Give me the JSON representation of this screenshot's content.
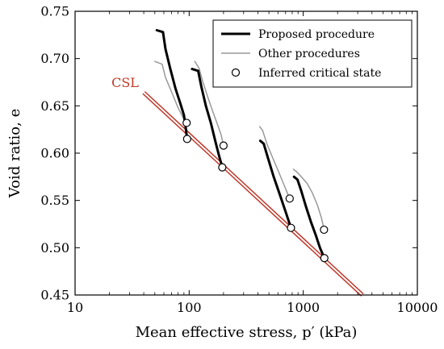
{
  "chart_data": {
    "type": "line",
    "xlabel": "Mean effective stress, p′ (kPa)",
    "ylabel": "Void ratio, e",
    "xscale": "log",
    "xlim": [
      10,
      10000
    ],
    "ylim": [
      0.45,
      0.75
    ],
    "xticks": [
      {
        "value": 10,
        "label": "10"
      },
      {
        "value": 100,
        "label": "100"
      },
      {
        "value": 1000,
        "label": "1000"
      },
      {
        "value": 10000,
        "label": "10000"
      }
    ],
    "yticks": [
      {
        "value": 0.45,
        "label": "0.45"
      },
      {
        "value": 0.5,
        "label": "0.50"
      },
      {
        "value": 0.55,
        "label": "0.55"
      },
      {
        "value": 0.6,
        "label": "0.60"
      },
      {
        "value": 0.65,
        "label": "0.65"
      },
      {
        "value": 0.7,
        "label": "0.70"
      },
      {
        "value": 0.75,
        "label": "0.75"
      }
    ],
    "legend": {
      "placement": "top-right",
      "entries": [
        {
          "key": "proposed",
          "label": "Proposed procedure",
          "style": "thick-line",
          "color": "#000000"
        },
        {
          "key": "other",
          "label": "Other procedures",
          "style": "thin-line",
          "color": "#999999"
        },
        {
          "key": "critical",
          "label": "Inferred critical state",
          "style": "circle",
          "color": "#000000"
        }
      ]
    },
    "csl": {
      "label": "CSL",
      "color": "#c0392b",
      "points": [
        [
          40,
          0.664
        ],
        [
          3300,
          0.45
        ]
      ]
    },
    "series": [
      {
        "key": "other",
        "color": "#999999",
        "width": 1.5,
        "curves": [
          [
            [
              50,
              0.697
            ],
            [
              58,
              0.694
            ],
            [
              62,
              0.68
            ],
            [
              70,
              0.665
            ],
            [
              80,
              0.648
            ],
            [
              88,
              0.638
            ],
            [
              93,
              0.632
            ]
          ],
          [
            [
              112,
              0.697
            ],
            [
              122,
              0.69
            ],
            [
              132,
              0.675
            ],
            [
              145,
              0.66
            ],
            [
              160,
              0.645
            ],
            [
              175,
              0.632
            ],
            [
              190,
              0.62
            ],
            [
              200,
              0.608
            ]
          ],
          [
            [
              415,
              0.628
            ],
            [
              440,
              0.624
            ],
            [
              480,
              0.61
            ],
            [
              540,
              0.595
            ],
            [
              610,
              0.58
            ],
            [
              680,
              0.566
            ],
            [
              760,
              0.552
            ]
          ],
          [
            [
              820,
              0.583
            ],
            [
              880,
              0.58
            ],
            [
              960,
              0.575
            ],
            [
              1080,
              0.568
            ],
            [
              1200,
              0.558
            ],
            [
              1330,
              0.545
            ],
            [
              1440,
              0.532
            ],
            [
              1520,
              0.52
            ]
          ]
        ]
      },
      {
        "key": "proposed",
        "color": "#000000",
        "width": 3,
        "curves": [
          [
            [
              52,
              0.73
            ],
            [
              59,
              0.728
            ],
            [
              62,
              0.71
            ],
            [
              68,
              0.69
            ],
            [
              76,
              0.668
            ],
            [
              84,
              0.652
            ],
            [
              90,
              0.64
            ],
            [
              93,
              0.628
            ],
            [
              96,
              0.615
            ]
          ],
          [
            [
              106,
              0.689
            ],
            [
              120,
              0.687
            ],
            [
              128,
              0.67
            ],
            [
              140,
              0.65
            ],
            [
              155,
              0.632
            ],
            [
              170,
              0.612
            ],
            [
              182,
              0.598
            ],
            [
              195,
              0.585
            ]
          ],
          [
            [
              420,
              0.613
            ],
            [
              450,
              0.61
            ],
            [
              490,
              0.595
            ],
            [
              550,
              0.575
            ],
            [
              620,
              0.557
            ],
            [
              700,
              0.538
            ],
            [
              780,
              0.521
            ]
          ],
          [
            [
              830,
              0.575
            ],
            [
              890,
              0.572
            ],
            [
              960,
              0.56
            ],
            [
              1060,
              0.543
            ],
            [
              1170,
              0.527
            ],
            [
              1290,
              0.513
            ],
            [
              1400,
              0.5
            ],
            [
              1530,
              0.489
            ]
          ]
        ]
      }
    ],
    "critical_points": [
      [
        95,
        0.632
      ],
      [
        96,
        0.615
      ],
      [
        200,
        0.608
      ],
      [
        195,
        0.585
      ],
      [
        760,
        0.552
      ],
      [
        780,
        0.521
      ],
      [
        1520,
        0.519
      ],
      [
        1530,
        0.489
      ]
    ]
  }
}
